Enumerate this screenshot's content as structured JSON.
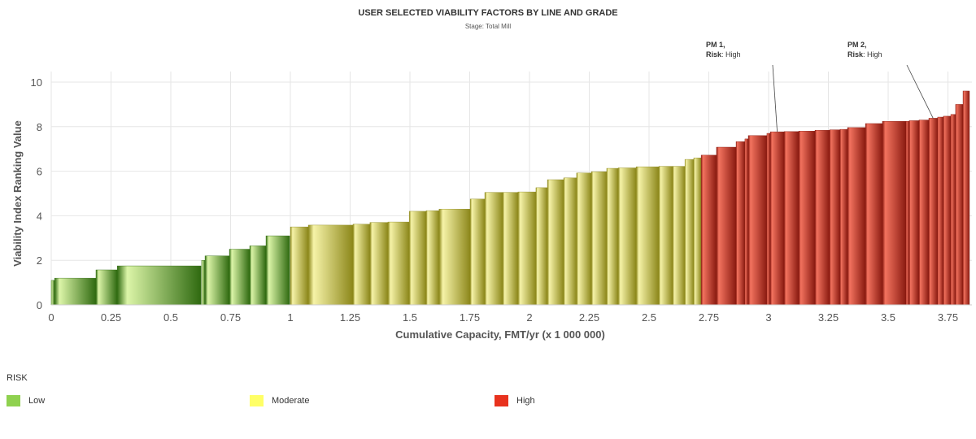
{
  "chart_data": {
    "type": "bar",
    "variant": "variable-width cumulative capacity bars",
    "title": "USER SELECTED VIABILITY FACTORS BY LINE AND GRADE",
    "subtitle": "Stage: Total Mill",
    "xlabel": "Cumulative Capacity, FMT/yr (x 1 000 000)",
    "ylabel": "Viability Index Ranking Value",
    "xlim": [
      0,
      3.84
    ],
    "ylim": [
      0,
      10
    ],
    "x_ticks": [
      "0",
      "0.25",
      "0.5",
      "0.75",
      "1",
      "1.25",
      "1.5",
      "1.75",
      "2",
      "2.25",
      "2.5",
      "2.75",
      "3",
      "3.25",
      "3.5",
      "3.75"
    ],
    "y_ticks": [
      "0",
      "2",
      "4",
      "6",
      "8",
      "10"
    ],
    "grid": true,
    "legend": {
      "title": "RISK",
      "placement": "bottom-left"
    },
    "series": [
      {
        "name": "Low",
        "color": "#8fd14f",
        "gradient": [
          "#dcf5a8",
          "#2f6a10"
        ],
        "bars": [
          [
            0,
            0.014,
            1.1
          ],
          [
            0.014,
            0.187,
            1.2
          ],
          [
            0.187,
            0.276,
            1.57
          ],
          [
            0.276,
            0.626,
            1.75
          ],
          [
            0.629,
            0.643,
            2.0
          ],
          [
            0.643,
            0.745,
            2.2
          ],
          [
            0.745,
            0.83,
            2.5
          ],
          [
            0.83,
            0.898,
            2.65
          ],
          [
            0.898,
            0.997,
            3.1
          ]
        ]
      },
      {
        "name": "Moderate",
        "color": "#ffff66",
        "gradient": [
          "#f6f3a8",
          "#8c871a"
        ],
        "bars": [
          [
            1.0,
            1.075,
            3.5
          ],
          [
            1.075,
            1.262,
            3.58
          ],
          [
            1.262,
            1.333,
            3.62
          ],
          [
            1.333,
            1.408,
            3.7
          ],
          [
            1.408,
            1.497,
            3.72
          ],
          [
            1.497,
            1.568,
            4.2
          ],
          [
            1.568,
            1.622,
            4.23
          ],
          [
            1.622,
            1.752,
            4.3
          ],
          [
            1.752,
            1.813,
            4.75
          ],
          [
            1.813,
            1.888,
            5.05
          ],
          [
            1.888,
            1.952,
            5.05
          ],
          [
            1.952,
            2.027,
            5.07
          ],
          [
            2.027,
            2.075,
            5.26
          ],
          [
            2.075,
            2.143,
            5.62
          ],
          [
            2.143,
            2.197,
            5.7
          ],
          [
            2.197,
            2.259,
            5.92
          ],
          [
            2.259,
            2.323,
            5.98
          ],
          [
            2.323,
            2.371,
            6.13
          ],
          [
            2.371,
            2.446,
            6.15
          ],
          [
            2.446,
            2.541,
            6.2
          ],
          [
            2.541,
            2.599,
            6.22
          ],
          [
            2.599,
            2.65,
            6.22
          ],
          [
            2.65,
            2.687,
            6.53
          ],
          [
            2.687,
            2.718,
            6.6
          ]
        ]
      },
      {
        "name": "High",
        "color": "#e8321e",
        "gradient": [
          "#f3735f",
          "#8a1a10"
        ],
        "bars": [
          [
            2.718,
            2.782,
            6.72
          ],
          [
            2.782,
            2.864,
            7.08
          ],
          [
            2.864,
            2.901,
            7.33
          ],
          [
            2.901,
            2.915,
            7.45
          ],
          [
            2.915,
            2.993,
            7.6
          ],
          [
            2.993,
            3.007,
            7.7
          ],
          [
            3.007,
            3.065,
            7.77
          ],
          [
            3.065,
            3.126,
            7.78
          ],
          [
            3.126,
            3.194,
            7.8
          ],
          [
            3.194,
            3.255,
            7.84
          ],
          [
            3.255,
            3.299,
            7.86
          ],
          [
            3.299,
            3.33,
            7.88
          ],
          [
            3.33,
            3.405,
            7.96
          ],
          [
            3.405,
            3.476,
            8.14
          ],
          [
            3.476,
            3.575,
            8.24
          ],
          [
            3.575,
            3.588,
            8.24
          ],
          [
            3.588,
            3.629,
            8.27
          ],
          [
            3.629,
            3.67,
            8.3
          ],
          [
            3.67,
            3.707,
            8.38
          ],
          [
            3.707,
            3.731,
            8.43
          ],
          [
            3.731,
            3.762,
            8.47
          ],
          [
            3.762,
            3.782,
            8.55
          ],
          [
            3.782,
            3.813,
            9.0
          ],
          [
            3.813,
            3.84,
            9.6
          ]
        ]
      }
    ],
    "annotations": [
      {
        "label": "PM 1,",
        "risk_key": "Risk",
        "risk_value": ": High",
        "x": 3.036,
        "y": 7.77
      },
      {
        "label": "PM 2,",
        "risk_key": "Risk",
        "risk_value": ": High",
        "x": 3.688,
        "y": 8.38
      }
    ]
  }
}
